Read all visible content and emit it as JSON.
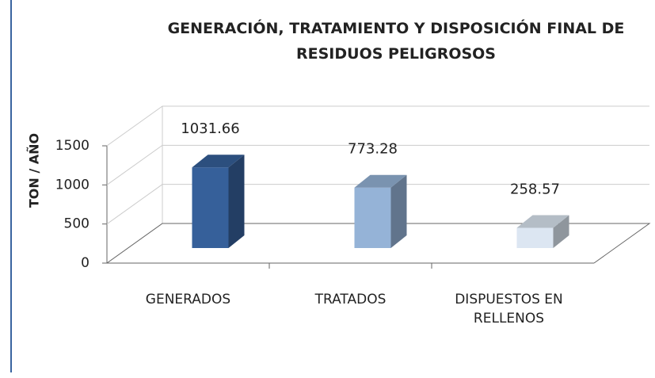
{
  "chart_data": {
    "type": "bar3d",
    "title": "GENERACIÓN, TRATAMIENTO Y DISPOSICIÓN FINAL DE RESIDUOS PELIGROSOS",
    "y_label": "TON / AÑO",
    "categories": [
      "GENERADOS",
      "TRATADOS",
      "DISPUESTOS EN RELLENOS"
    ],
    "values": [
      1031.66,
      773.28,
      258.57
    ],
    "colors": [
      "#36609a",
      "#95b3d7",
      "#dce6f2"
    ],
    "ylim": [
      0,
      1500
    ],
    "yticks": [
      0,
      500,
      1000,
      1500
    ],
    "grid": true
  }
}
